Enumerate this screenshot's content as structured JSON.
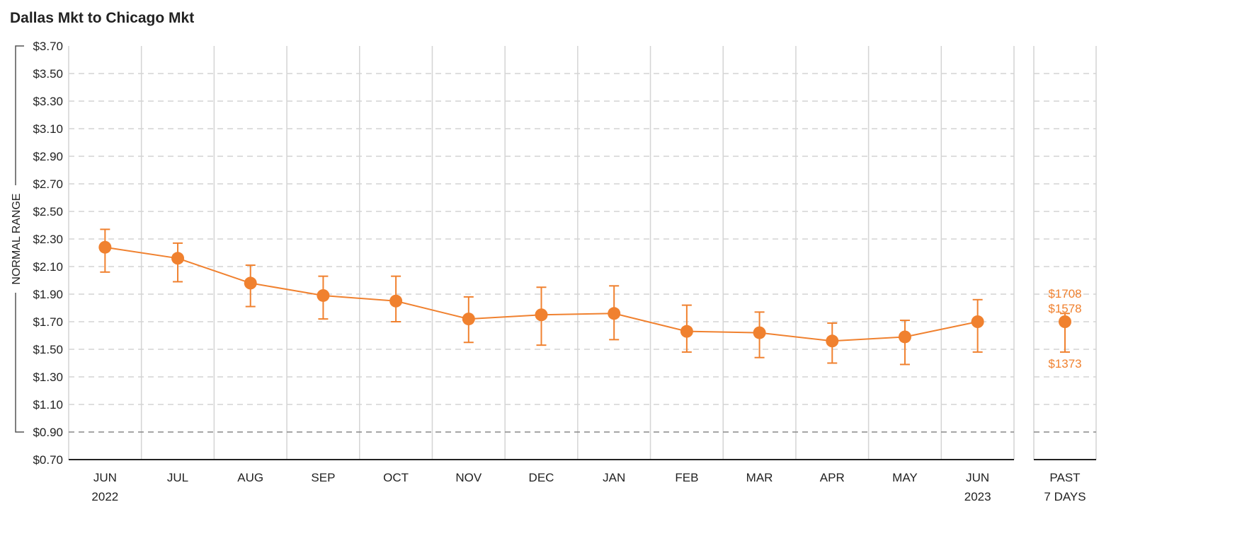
{
  "title": "Dallas Mkt to Chicago Mkt",
  "chart_data": {
    "type": "line",
    "title": "Dallas Mkt to Chicago Mkt",
    "ylabel": "NORMAL RANGE",
    "ylim": [
      0.7,
      3.7
    ],
    "y_ticks": [
      "$3.70",
      "$3.50",
      "$3.30",
      "$3.10",
      "$2.90",
      "$2.70",
      "$2.50",
      "$2.30",
      "$2.10",
      "$1.90",
      "$1.70",
      "$1.50",
      "$1.30",
      "$1.10",
      "$0.90",
      "$0.70"
    ],
    "y_tick_values": [
      3.7,
      3.5,
      3.3,
      3.1,
      2.9,
      2.7,
      2.5,
      2.3,
      2.1,
      1.9,
      1.7,
      1.5,
      1.3,
      1.1,
      0.9,
      0.7
    ],
    "normal_range": [
      0.9,
      3.7
    ],
    "grid": true,
    "months": [
      {
        "label": "JUN",
        "year": "2022",
        "value": 2.24,
        "low": 2.06,
        "high": 2.37
      },
      {
        "label": "JUL",
        "year": "",
        "value": 2.16,
        "low": 1.99,
        "high": 2.27
      },
      {
        "label": "AUG",
        "year": "",
        "value": 1.98,
        "low": 1.81,
        "high": 2.11
      },
      {
        "label": "SEP",
        "year": "",
        "value": 1.89,
        "low": 1.72,
        "high": 2.03
      },
      {
        "label": "OCT",
        "year": "",
        "value": 1.85,
        "low": 1.7,
        "high": 2.03
      },
      {
        "label": "NOV",
        "year": "",
        "value": 1.72,
        "low": 1.55,
        "high": 1.88
      },
      {
        "label": "DEC",
        "year": "",
        "value": 1.75,
        "low": 1.53,
        "high": 1.95
      },
      {
        "label": "JAN",
        "year": "",
        "value": 1.76,
        "low": 1.57,
        "high": 1.96
      },
      {
        "label": "FEB",
        "year": "",
        "value": 1.63,
        "low": 1.48,
        "high": 1.82
      },
      {
        "label": "MAR",
        "year": "",
        "value": 1.62,
        "low": 1.44,
        "high": 1.77
      },
      {
        "label": "APR",
        "year": "",
        "value": 1.56,
        "low": 1.4,
        "high": 1.69
      },
      {
        "label": "MAY",
        "year": "",
        "value": 1.59,
        "low": 1.39,
        "high": 1.71
      },
      {
        "label": "JUN",
        "year": "2023",
        "value": 1.7,
        "low": 1.48,
        "high": 1.86
      }
    ],
    "past": {
      "label": "PAST",
      "label2": "7 DAYS",
      "value": 1.7,
      "low": 1.48,
      "high": 1.76,
      "high_label": "$1708",
      "mid_label": "$1578",
      "low_label": "$1373"
    },
    "colors": {
      "series": "#f0812f",
      "grid": "#d4d4d4",
      "axis": "#222222",
      "range_line": "#888888"
    }
  }
}
